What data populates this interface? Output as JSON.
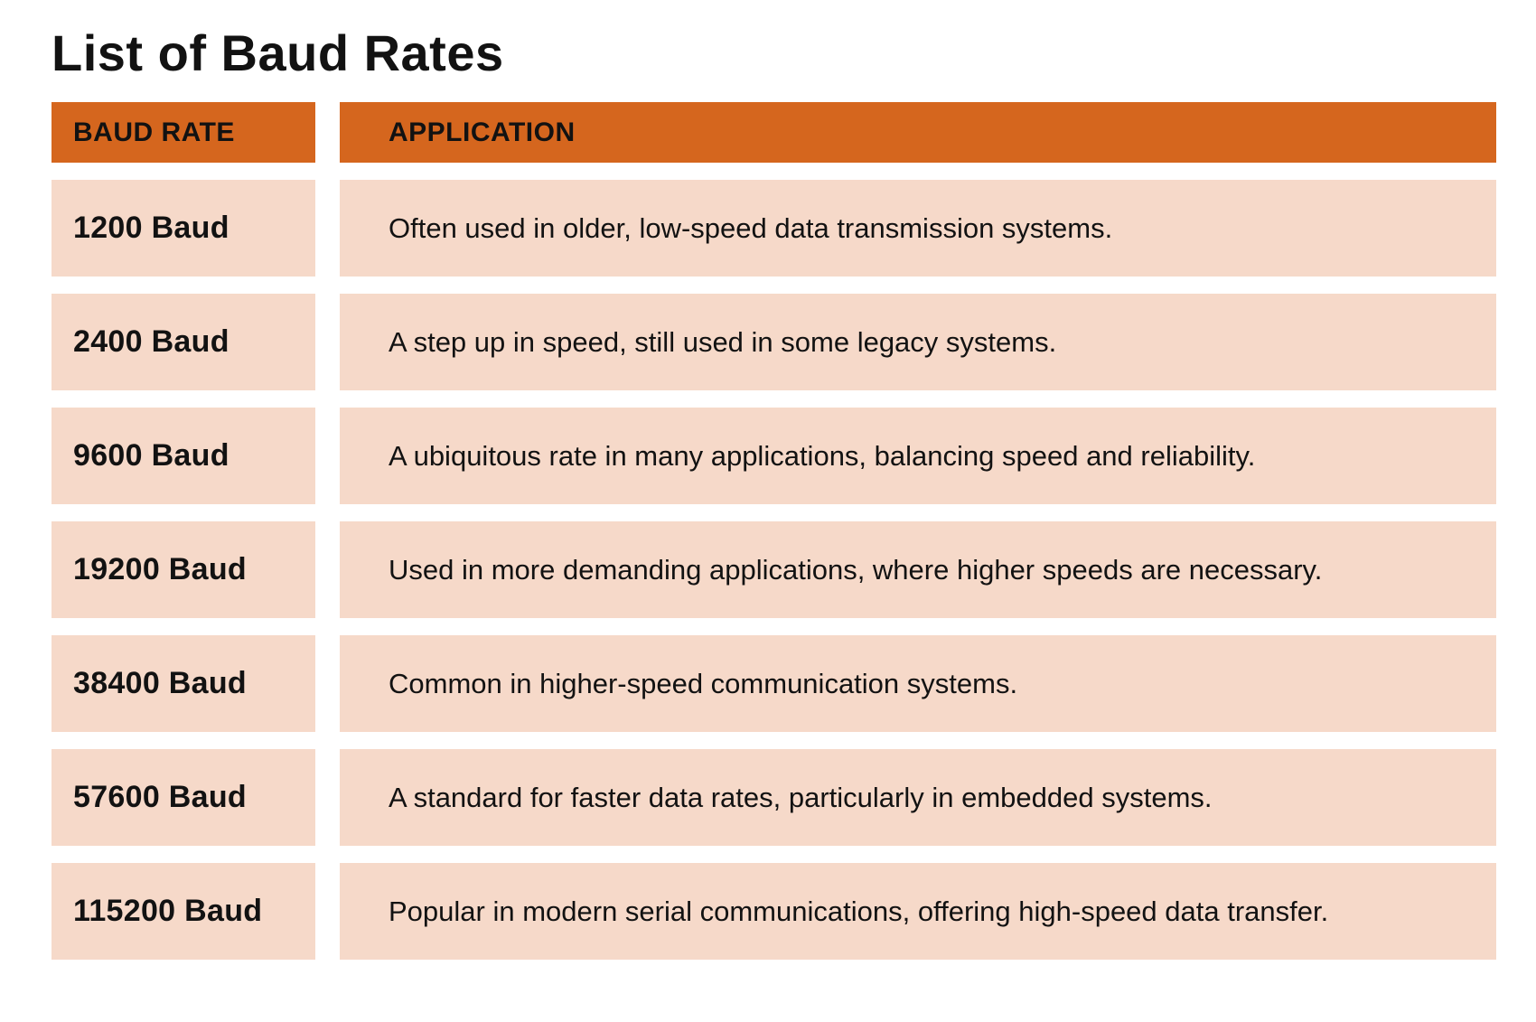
{
  "colors": {
    "header_bg": "#D5661E",
    "row_bg": "#F6D9C9",
    "text": "#121212",
    "page_bg": "#FFFFFF"
  },
  "page": {
    "title": "List of Baud Rates"
  },
  "chart_data": {
    "type": "table",
    "title": "List of Baud Rates",
    "columns": [
      "BAUD RATE",
      "APPLICATION"
    ],
    "rows": [
      [
        "1200 Baud",
        "Often used in older, low-speed data transmission systems."
      ],
      [
        "2400 Baud",
        "A step up in speed, still used in some legacy systems."
      ],
      [
        "9600 Baud",
        "A ubiquitous rate in many applications, balancing speed and reliability."
      ],
      [
        "19200 Baud",
        "Used in more demanding applications, where higher speeds are necessary."
      ],
      [
        "38400 Baud",
        "Common in higher-speed communication systems."
      ],
      [
        "57600 Baud",
        "A standard for faster data rates, particularly in embedded systems."
      ],
      [
        "115200 Baud",
        "Popular in modern serial communications, offering high-speed data transfer."
      ]
    ]
  }
}
